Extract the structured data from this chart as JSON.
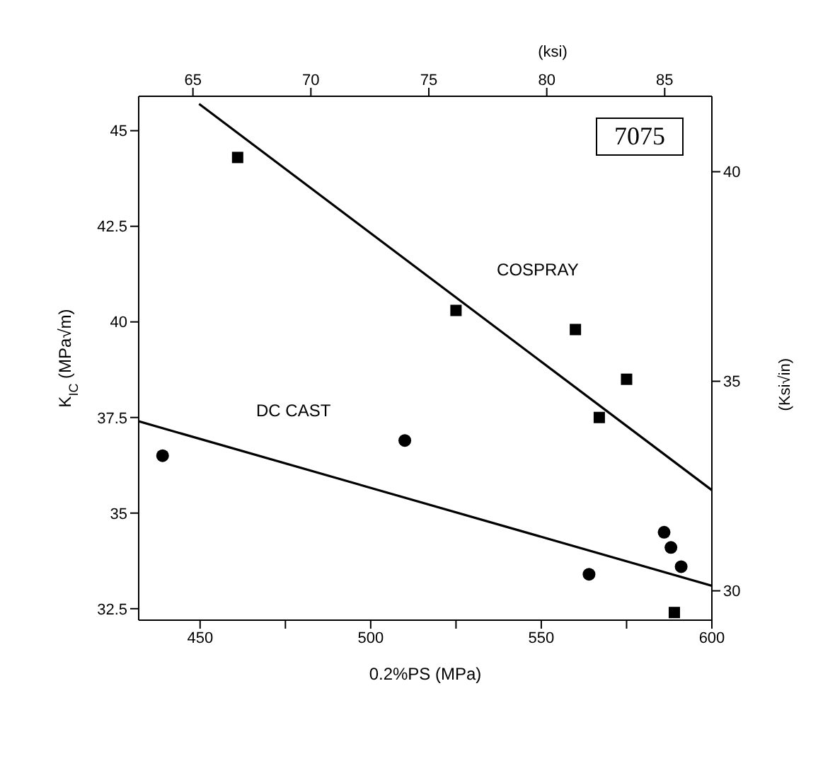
{
  "chart_data": {
    "type": "scatter",
    "xlabel": "0.2%PS (MPa)",
    "ylabel": "K$_{IC}$ (MPa√m)",
    "y2label": "(Ksi√in)",
    "x2label": "(ksi)",
    "xlim": [
      432,
      600
    ],
    "xticks": [
      450,
      {
        "value": 475,
        "label": null
      },
      500,
      {
        "value": 525,
        "label": null
      },
      550,
      {
        "value": 575,
        "label": null
      },
      600
    ],
    "ylim": [
      32.2,
      45.9
    ],
    "yticks": [
      32.5,
      35,
      37.5,
      40,
      42.5,
      45
    ],
    "x2lim": [
      62.7,
      87.0
    ],
    "x2ticks": [
      65,
      70,
      75,
      80,
      85
    ],
    "y2lim": [
      29.3,
      41.8
    ],
    "y2ticks": [
      30,
      35,
      40
    ],
    "grid": false,
    "legend": false,
    "series": [
      {
        "marker": "square",
        "color": "#000000",
        "x": [
          461,
          525,
          560,
          575,
          567,
          589
        ],
        "values": [
          44.3,
          40.3,
          39.8,
          38.5,
          37.5,
          32.4
        ]
      },
      {
        "marker": "circle",
        "color": "#000000",
        "x": [
          439,
          510,
          564,
          586,
          588,
          591
        ],
        "values": [
          36.5,
          36.9,
          33.4,
          34.5,
          34.1,
          33.6
        ]
      },
      {
        "type": "line",
        "name": "COSPRAY",
        "marker": "none",
        "line_style": "solid",
        "color": "#000000",
        "x": [
          449.7,
          600
        ],
        "values": [
          45.7,
          35.6
        ]
      },
      {
        "type": "line",
        "name": "DC CAST",
        "marker": "none",
        "line_style": "solid",
        "color": "#000000",
        "x": [
          432,
          600
        ],
        "values": [
          37.4,
          33.1
        ]
      }
    ],
    "annotations": [
      "7075"
    ]
  }
}
